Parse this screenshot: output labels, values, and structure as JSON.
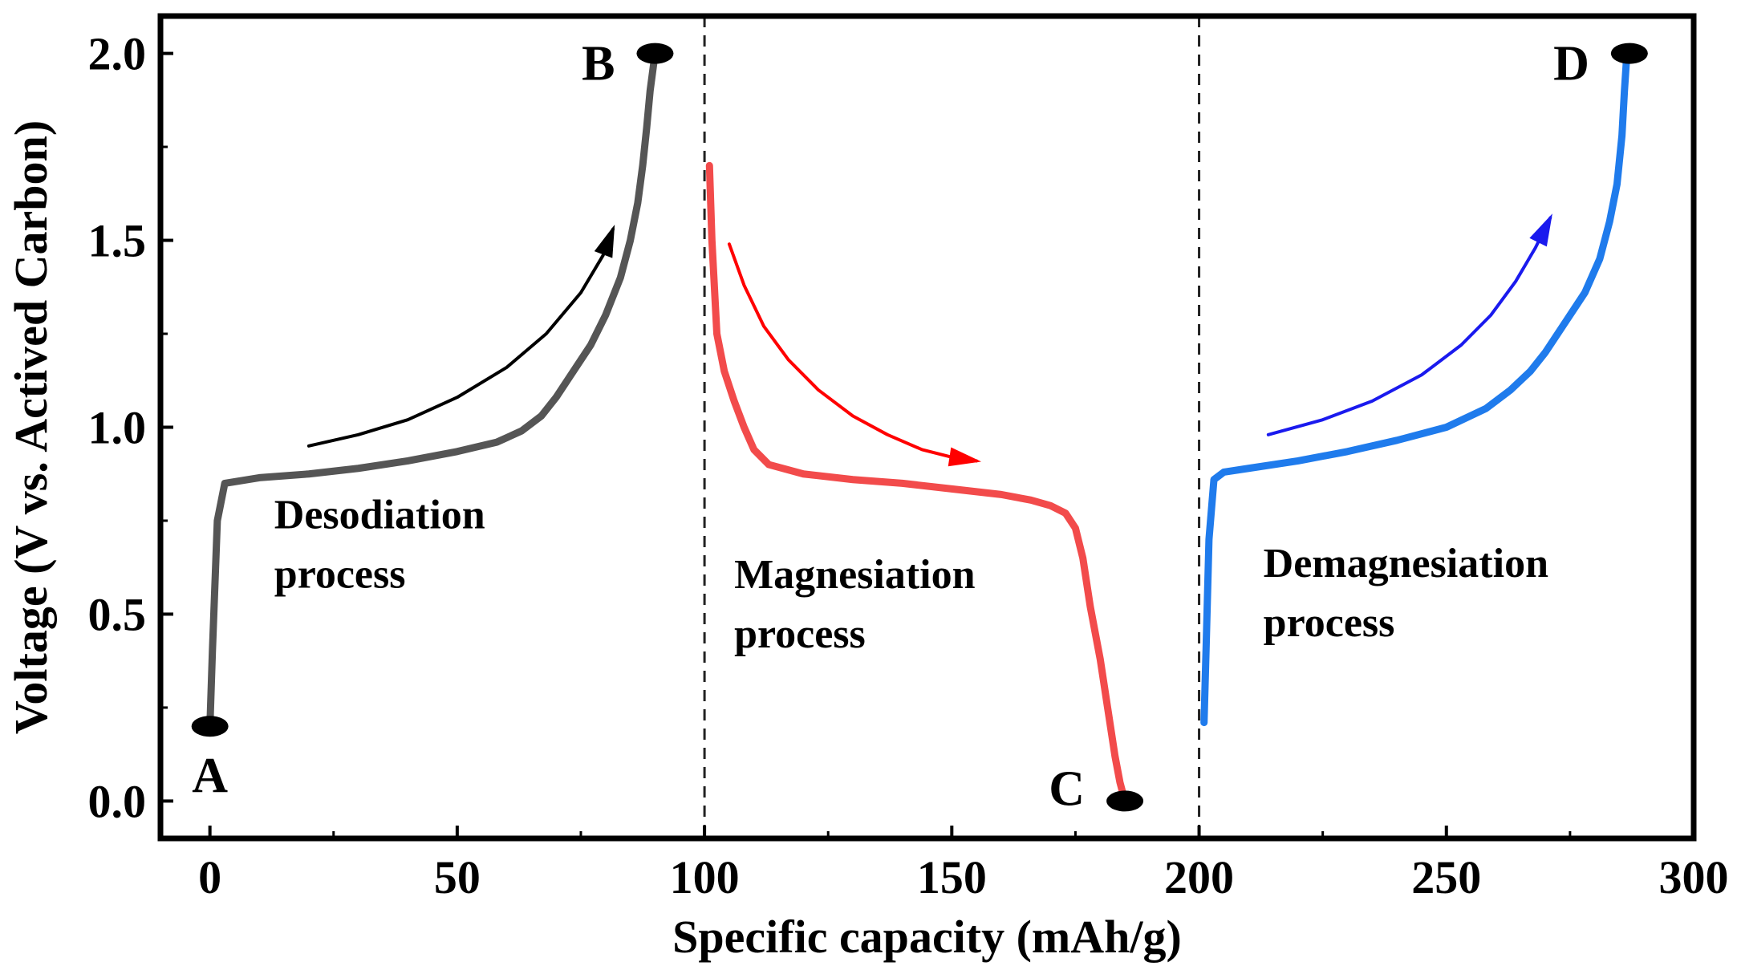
{
  "chart_data": {
    "type": "line",
    "title": "",
    "xlabel": "Specific capacity (mAh/g)",
    "ylabel": "Voltage (V vs. Actived Carbon)",
    "xlim": [
      -10,
      300
    ],
    "ylim": [
      -0.1,
      2.1
    ],
    "xticks": [
      0,
      50,
      100,
      150,
      200,
      250,
      300
    ],
    "xtick_labels": [
      "0",
      "50",
      "100",
      "150",
      "200",
      "250",
      "300"
    ],
    "yticks": [
      0.0,
      0.5,
      1.0,
      1.5,
      2.0
    ],
    "ytick_labels": [
      "0.0",
      "0.5",
      "1.0",
      "1.5",
      "2.0"
    ],
    "grid": false,
    "vlines": [
      100,
      200
    ],
    "series": [
      {
        "name": "Desodiation process",
        "color": "#555555",
        "x": [
          0,
          0.5,
          1.5,
          3,
          10,
          20,
          30,
          40,
          50,
          58,
          63,
          67,
          70,
          73,
          77,
          80,
          83,
          85,
          86.5,
          87.5,
          88.3,
          89,
          89.6,
          90
        ],
        "y": [
          0.2,
          0.4,
          0.75,
          0.85,
          0.865,
          0.875,
          0.89,
          0.91,
          0.935,
          0.96,
          0.99,
          1.03,
          1.08,
          1.14,
          1.22,
          1.3,
          1.4,
          1.5,
          1.6,
          1.7,
          1.8,
          1.9,
          1.96,
          2.0
        ]
      },
      {
        "name": "Magnesiation process",
        "color": "#f24b4b",
        "x": [
          101,
          101.5,
          102.5,
          104,
          106,
          108,
          110,
          113,
          120,
          130,
          140,
          150,
          160,
          166,
          170,
          173,
          175,
          176.5,
          178,
          180,
          181.5,
          183,
          184,
          185
        ],
        "y": [
          1.7,
          1.5,
          1.25,
          1.15,
          1.07,
          1.0,
          0.94,
          0.9,
          0.875,
          0.86,
          0.85,
          0.835,
          0.82,
          0.805,
          0.79,
          0.77,
          0.73,
          0.65,
          0.52,
          0.38,
          0.25,
          0.12,
          0.05,
          0.0
        ]
      },
      {
        "name": "Demagnesiation process",
        "color": "#1f7bec",
        "x": [
          201,
          201.4,
          202,
          203,
          205,
          210,
          220,
          230,
          240,
          250,
          258,
          263,
          267,
          270,
          274,
          278,
          281,
          283,
          284.5,
          285.5,
          286,
          286.5
        ],
        "y": [
          0.21,
          0.4,
          0.7,
          0.86,
          0.88,
          0.89,
          0.91,
          0.935,
          0.965,
          1.0,
          1.05,
          1.1,
          1.15,
          1.2,
          1.28,
          1.36,
          1.45,
          1.55,
          1.65,
          1.78,
          1.9,
          2.0
        ]
      }
    ],
    "arrows": [
      {
        "name": "desodiation-arrow",
        "color": "#000000",
        "x": [
          20,
          30,
          40,
          50,
          60,
          68,
          75,
          79.5,
          81.5
        ],
        "y": [
          0.95,
          0.98,
          1.02,
          1.08,
          1.16,
          1.25,
          1.36,
          1.46,
          1.53
        ]
      },
      {
        "name": "magnesiation-arrow",
        "color": "#ff0000",
        "x": [
          105,
          108,
          112,
          117,
          123,
          130,
          137,
          144,
          150,
          155
        ],
        "y": [
          1.49,
          1.38,
          1.27,
          1.18,
          1.1,
          1.03,
          0.98,
          0.94,
          0.92,
          0.91
        ]
      },
      {
        "name": "demagnesiation-arrow",
        "color": "#1a1aee",
        "x": [
          214,
          225,
          235,
          245,
          253,
          259,
          264,
          268,
          271
        ],
        "y": [
          0.98,
          1.02,
          1.07,
          1.14,
          1.22,
          1.3,
          1.39,
          1.48,
          1.56
        ]
      }
    ],
    "points": [
      {
        "label": "A",
        "x": 0,
        "y": 0.2,
        "label_pos": "below"
      },
      {
        "label": "B",
        "x": 90,
        "y": 2.0,
        "label_pos": "left"
      },
      {
        "label": "C",
        "x": 185,
        "y": 0.0,
        "label_pos": "left"
      },
      {
        "label": "D",
        "x": 287,
        "y": 2.0,
        "label_pos": "left"
      }
    ],
    "annotations": [
      {
        "lines": [
          "Desodiation",
          "process"
        ],
        "x": 13,
        "y": 0.73
      },
      {
        "lines": [
          "Magnesiation",
          "process"
        ],
        "x": 106,
        "y": 0.57
      },
      {
        "lines": [
          "Demagnesiation",
          "process"
        ],
        "x": 213,
        "y": 0.6
      }
    ]
  }
}
